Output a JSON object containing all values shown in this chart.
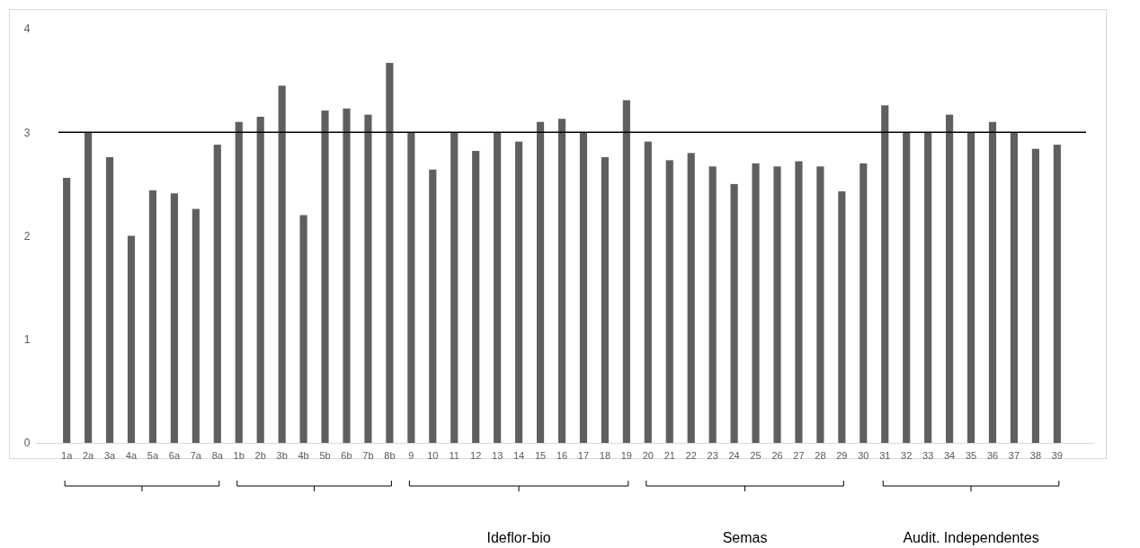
{
  "chart_data": {
    "type": "bar",
    "categories": [
      "1a",
      "2a",
      "3a",
      "4a",
      "5a",
      "6a",
      "7a",
      "8a",
      "1b",
      "2b",
      "3b",
      "4b",
      "5b",
      "6b",
      "7b",
      "8b",
      "9",
      "10",
      "11",
      "12",
      "13",
      "14",
      "15",
      "16",
      "17",
      "18",
      "19",
      "20",
      "21",
      "22",
      "23",
      "24",
      "25",
      "26",
      "27",
      "28",
      "29",
      "30",
      "31",
      "32",
      "33",
      "34",
      "35",
      "36",
      "37",
      "38",
      "39"
    ],
    "values": [
      2.56,
      3.0,
      2.76,
      2.0,
      2.44,
      2.41,
      2.26,
      2.88,
      3.1,
      3.15,
      3.45,
      2.2,
      3.21,
      3.23,
      3.17,
      3.67,
      3.0,
      2.64,
      3.0,
      2.82,
      3.0,
      2.91,
      3.1,
      3.13,
      3.0,
      2.76,
      3.31,
      2.91,
      2.73,
      2.8,
      2.67,
      2.5,
      2.7,
      2.67,
      2.72,
      2.67,
      2.43,
      2.7,
      3.26,
      3.0,
      3.0,
      3.17,
      3.0,
      3.1,
      3.0,
      2.84,
      2.88
    ],
    "color": "#5f5f5f",
    "ylim": [
      0,
      4
    ],
    "yticks": [
      0,
      1,
      2,
      3,
      4
    ],
    "grid": false,
    "ref_lines": [
      {
        "axis": "y",
        "value": 3,
        "color": "#000000"
      }
    ],
    "annotations": [
      "Ideflor-bio",
      "Semas",
      "Audit. Independentes"
    ]
  }
}
